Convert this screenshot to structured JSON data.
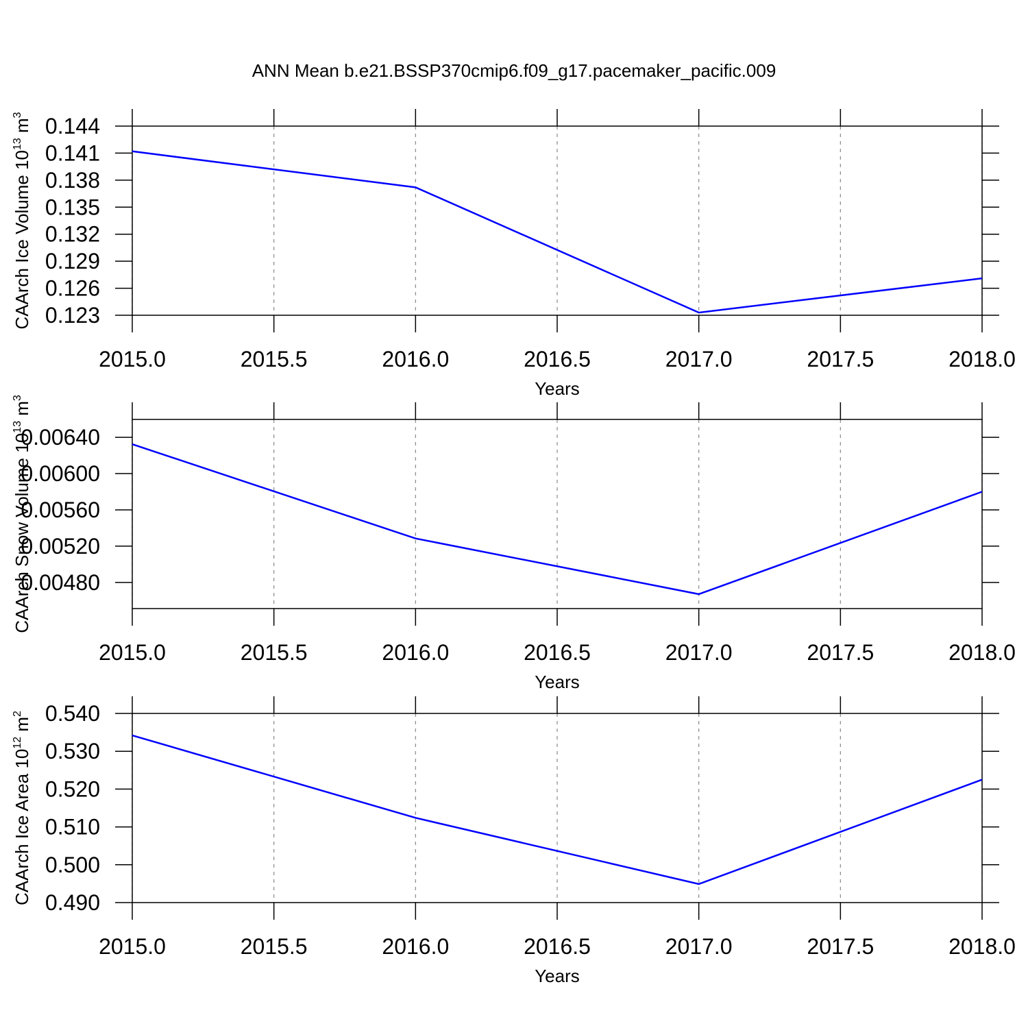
{
  "title": "ANN Mean b.e21.BSSP370cmip6.f09_g17.pacemaker_pacific.009",
  "chart_data": [
    {
      "type": "line",
      "xlabel": "Years",
      "ylabel": [
        "CAArch Ice Volume 10",
        "13",
        " m",
        "3"
      ],
      "x": [
        2015,
        2016,
        2017,
        2018
      ],
      "series": [
        {
          "color": "#0000ff",
          "values": [
            0.1412,
            0.1372,
            0.1233,
            0.1271
          ]
        }
      ],
      "xlim": [
        2015,
        2018
      ],
      "xticks": [
        {
          "value": 2015,
          "label": "2015.0"
        },
        {
          "value": 2015.5,
          "label": "2015.5"
        },
        {
          "value": 2016,
          "label": "2016.0"
        },
        {
          "value": 2016.5,
          "label": "2016.5"
        },
        {
          "value": 2017,
          "label": "2017.0"
        },
        {
          "value": 2017.5,
          "label": "2017.5"
        },
        {
          "value": 2018,
          "label": "2018.0"
        }
      ],
      "ylim": [
        0.123,
        0.144
      ],
      "yticks": [
        0.123,
        0.126,
        0.129,
        0.132,
        0.135,
        0.138,
        0.141,
        0.144
      ],
      "grid": true
    },
    {
      "type": "line",
      "xlabel": "Years",
      "ylabel": [
        "CAArch Snow Volume 10",
        "13",
        " m",
        "3"
      ],
      "x": [
        2015,
        2016,
        2017,
        2018
      ],
      "series": [
        {
          "color": "#0000ff",
          "values": [
            0.006324,
            0.005285,
            0.004671,
            0.0058
          ]
        }
      ],
      "xlim": [
        2015,
        2018
      ],
      "xticks": [
        {
          "value": 2015,
          "label": "2015.0"
        },
        {
          "value": 2015.5,
          "label": "2015.5"
        },
        {
          "value": 2016,
          "label": "2016.0"
        },
        {
          "value": 2016.5,
          "label": "2016.5"
        },
        {
          "value": 2017,
          "label": "2017.0"
        },
        {
          "value": 2017.5,
          "label": "2017.5"
        },
        {
          "value": 2018,
          "label": "2018.0"
        }
      ],
      "ylim": [
        0.004512,
        0.006597
      ],
      "yticks": [
        {
          "value": 0.0048,
          "label": "0.00480"
        },
        {
          "value": 0.0052,
          "label": "0.00520"
        },
        {
          "value": 0.0056,
          "label": "0.00560"
        },
        {
          "value": 0.006,
          "label": "0.00600"
        },
        {
          "value": 0.0064,
          "label": "0.00640"
        }
      ],
      "grid": true
    },
    {
      "type": "line",
      "xlabel": "Years",
      "ylabel": [
        "CAArch Ice Area 10",
        "12",
        " m",
        "2"
      ],
      "x": [
        2015,
        2016,
        2017,
        2018
      ],
      "series": [
        {
          "color": "#0000ff",
          "values": [
            0.5342,
            0.5124,
            0.4949,
            0.5225
          ]
        }
      ],
      "xlim": [
        2015,
        2018
      ],
      "xticks": [
        {
          "value": 2015,
          "label": "2015.0"
        },
        {
          "value": 2015.5,
          "label": "2015.5"
        },
        {
          "value": 2016,
          "label": "2016.0"
        },
        {
          "value": 2016.5,
          "label": "2016.5"
        },
        {
          "value": 2017,
          "label": "2017.0"
        },
        {
          "value": 2017.5,
          "label": "2017.5"
        },
        {
          "value": 2018,
          "label": "2018.0"
        }
      ],
      "ylim": [
        0.49,
        0.54
      ],
      "yticks": [
        {
          "value": 0.49,
          "label": "0.490"
        },
        {
          "value": 0.5,
          "label": "0.500"
        },
        {
          "value": 0.51,
          "label": "0.510"
        },
        {
          "value": 0.52,
          "label": "0.520"
        },
        {
          "value": 0.53,
          "label": "0.530"
        },
        {
          "value": 0.54,
          "label": "0.540"
        }
      ],
      "grid": true
    }
  ]
}
